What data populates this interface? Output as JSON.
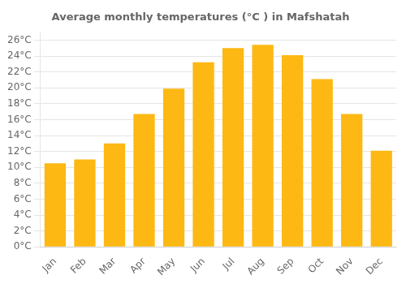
{
  "chart_data": {
    "type": "bar",
    "title": "Average monthly temperatures (°C ) in Mafshatah",
    "categories": [
      "Jan",
      "Feb",
      "Mar",
      "Apr",
      "May",
      "Jun",
      "Jul",
      "Aug",
      "Sep",
      "Oct",
      "Nov",
      "Dec"
    ],
    "values": [
      10.5,
      11.0,
      13.0,
      16.7,
      19.9,
      23.2,
      25.0,
      25.4,
      24.1,
      21.1,
      16.7,
      12.1
    ],
    "color": "#FDB813",
    "ylim": [
      0,
      27
    ],
    "yticks": [
      {
        "value": 0,
        "label": "0°C"
      },
      {
        "value": 2,
        "label": "2°C"
      },
      {
        "value": 4,
        "label": "4°C"
      },
      {
        "value": 6,
        "label": "6°C"
      },
      {
        "value": 8,
        "label": "8°C"
      },
      {
        "value": 10,
        "label": "10°C"
      },
      {
        "value": 12,
        "label": "12°C"
      },
      {
        "value": 14,
        "label": "14°C"
      },
      {
        "value": 16,
        "label": "16°C"
      },
      {
        "value": 18,
        "label": "18°C"
      },
      {
        "value": 20,
        "label": "20°C"
      },
      {
        "value": 22,
        "label": "22°C"
      },
      {
        "value": 24,
        "label": "24°C"
      },
      {
        "value": 26,
        "label": "26°C"
      }
    ],
    "grid": true
  }
}
